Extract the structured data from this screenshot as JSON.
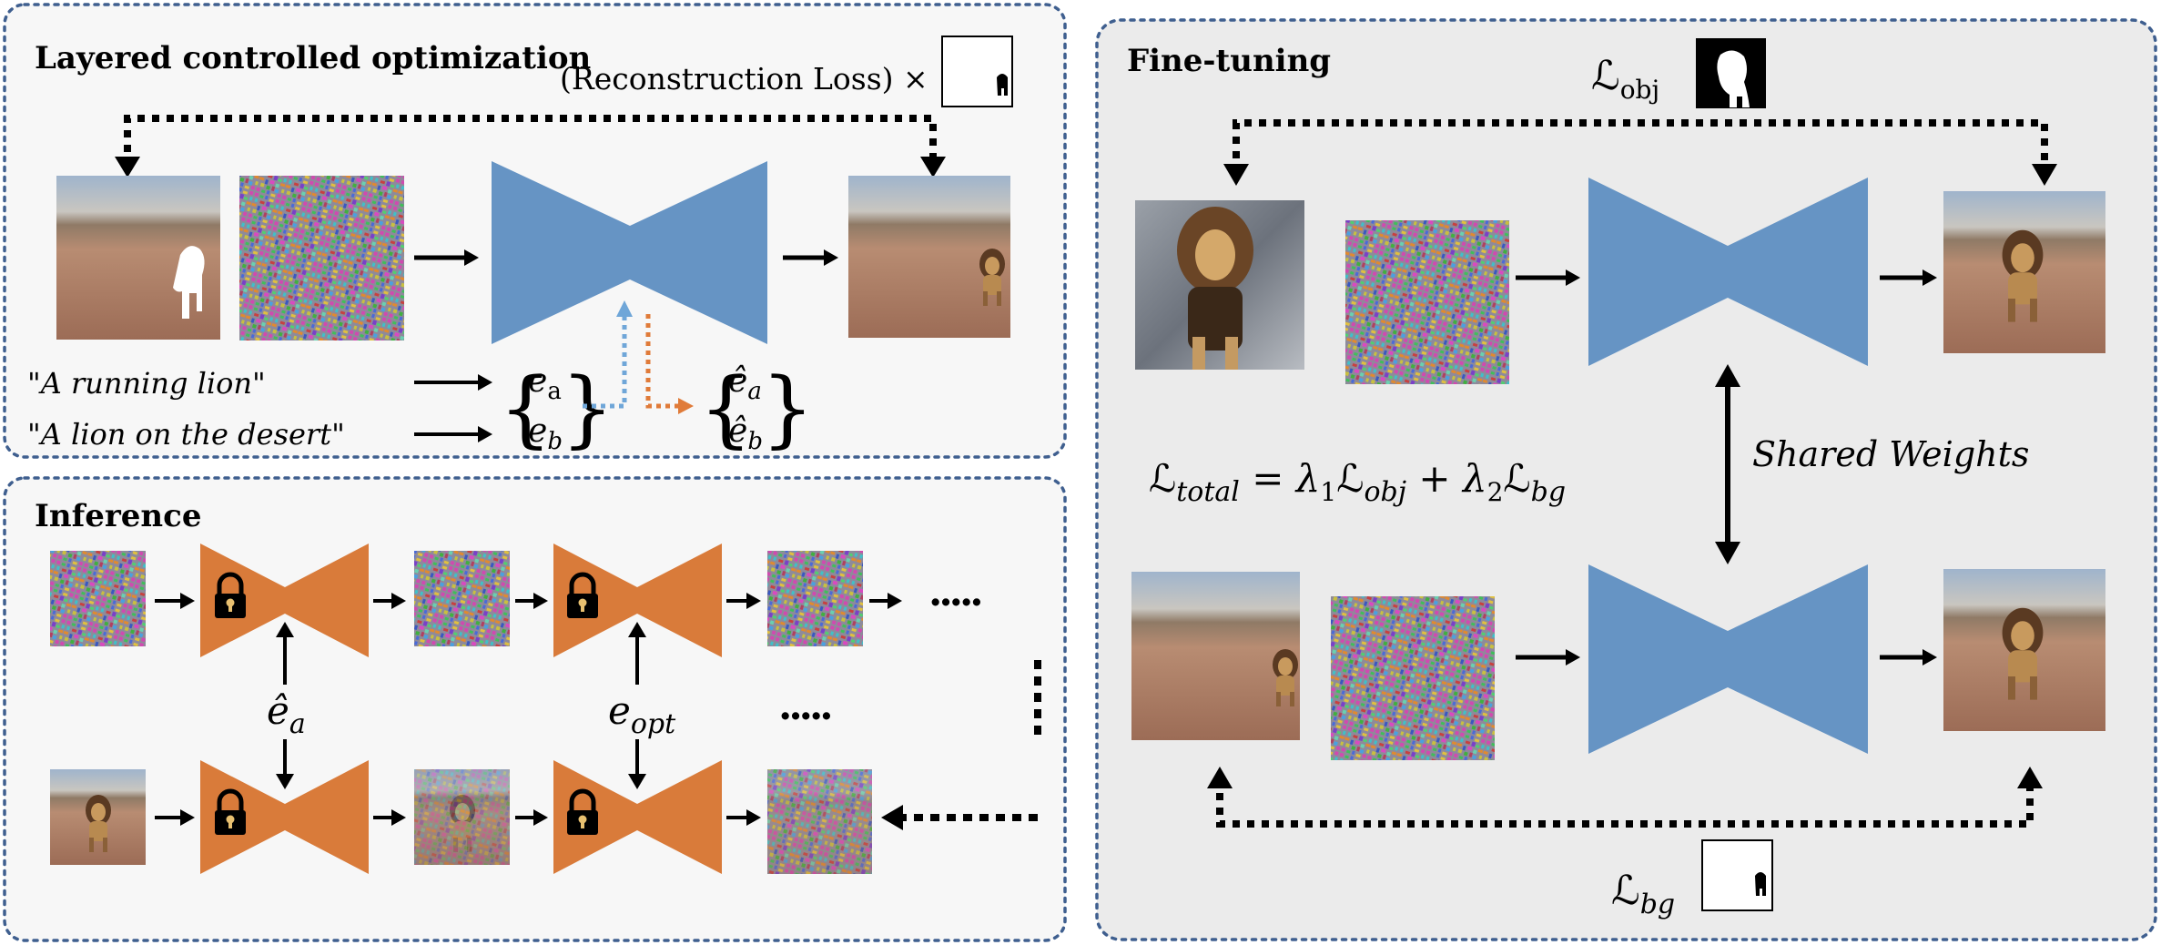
{
  "panels": {
    "lco": {
      "title": "Layered controlled optimization"
    },
    "finetune": {
      "title": "Fine-tuning"
    },
    "inference": {
      "title": "Inference"
    }
  },
  "lco": {
    "recon_loss": "(Reconstruction Loss) ×",
    "prompt_a": "\"A running lion\"",
    "prompt_b": "\"A lion on the desert\"",
    "emb_a": "e",
    "emb_a_sub": "a",
    "emb_b": "e",
    "emb_b_sub": "b",
    "emb_hat_a": "ê",
    "emb_hat_a_sub": "a",
    "emb_hat_b": "ê",
    "emb_hat_b_sub": "b"
  },
  "finetune": {
    "loss_obj": "ℒ",
    "loss_obj_sub": "obj",
    "loss_total": "ℒ",
    "loss_total_sub": "total",
    "eq_equals": " = λ",
    "eq_lambda1_sub": "1",
    "eq_l1": "ℒ",
    "eq_l1_sub": "obj",
    "eq_plus": " + λ",
    "eq_lambda2_sub": "2",
    "eq_l2": "ℒ",
    "eq_l2_sub": "bg",
    "shared_weights": "Shared Weights",
    "loss_bg": "ℒ",
    "loss_bg_sub": "bg"
  },
  "inference": {
    "emb_hat_a": "ê",
    "emb_hat_a_sub": "a",
    "emb_opt": "e",
    "emb_opt_sub": "opt",
    "ellipsis": "....."
  },
  "colors": {
    "unet_blue": "#6694c4",
    "unet_orange": "#d97b3a",
    "panel_border": "#3f5f8f",
    "panel_fill_left": "#f7f7f7",
    "panel_fill_right": "#ebebeb",
    "dotted_blue": "#6fa6d8",
    "dotted_orange": "#e07b39"
  },
  "icons": [
    "lock-icon",
    "mask-icon",
    "noise-image",
    "desert-photo",
    "lion-photo"
  ]
}
